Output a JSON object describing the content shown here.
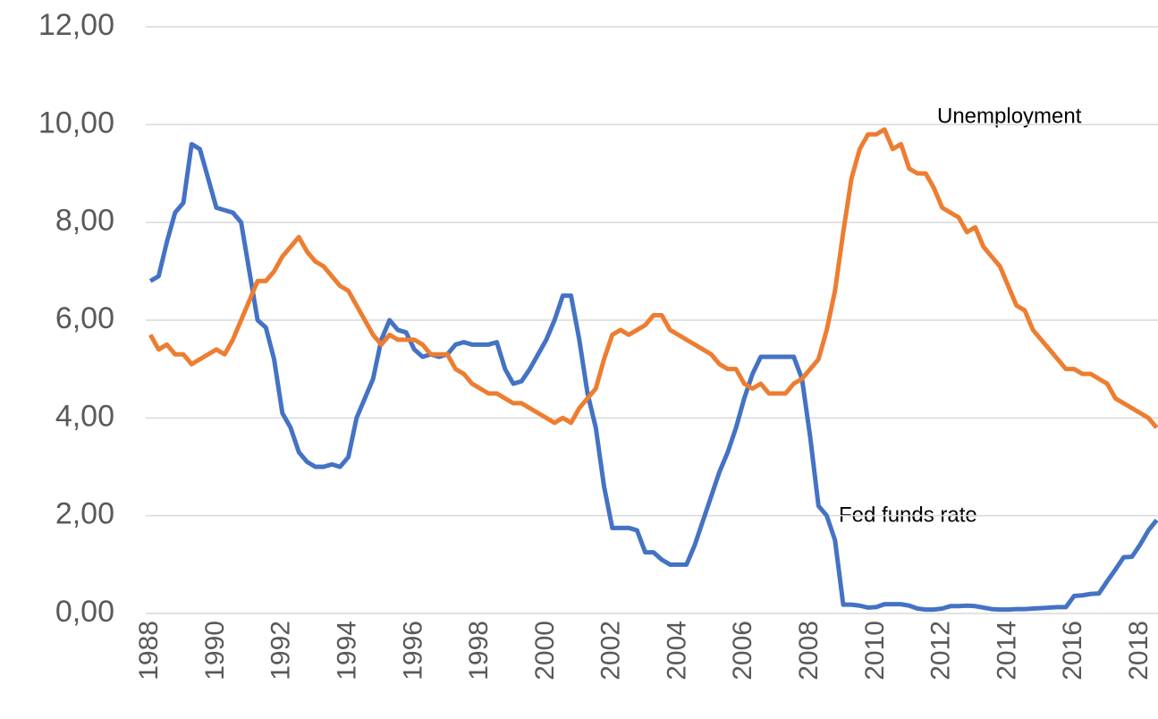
{
  "chart_data": {
    "type": "line",
    "annotations": [
      "Unemployment",
      "Fed funds rate"
    ],
    "x": [
      1988,
      1988.25,
      1988.5,
      1988.75,
      1989,
      1989.25,
      1989.5,
      1989.75,
      1990,
      1990.25,
      1990.5,
      1990.75,
      1991,
      1991.25,
      1991.5,
      1991.75,
      1992,
      1992.25,
      1992.5,
      1992.75,
      1993,
      1993.25,
      1993.5,
      1993.75,
      1994,
      1994.25,
      1994.5,
      1994.75,
      1995,
      1995.25,
      1995.5,
      1995.75,
      1996,
      1996.25,
      1996.5,
      1996.75,
      1997,
      1997.25,
      1997.5,
      1997.75,
      1998,
      1998.25,
      1998.5,
      1998.75,
      1999,
      1999.25,
      1999.5,
      1999.75,
      2000,
      2000.25,
      2000.5,
      2000.75,
      2001,
      2001.25,
      2001.5,
      2001.75,
      2002,
      2002.25,
      2002.5,
      2002.75,
      2003,
      2003.25,
      2003.5,
      2003.75,
      2004,
      2004.25,
      2004.5,
      2004.75,
      2005,
      2005.25,
      2005.5,
      2005.75,
      2006,
      2006.25,
      2006.5,
      2006.75,
      2007,
      2007.25,
      2007.5,
      2007.75,
      2008,
      2008.25,
      2008.5,
      2008.75,
      2009,
      2009.25,
      2009.5,
      2009.75,
      2010,
      2010.25,
      2010.5,
      2010.75,
      2011,
      2011.25,
      2011.5,
      2011.75,
      2012,
      2012.25,
      2012.5,
      2012.75,
      2013,
      2013.25,
      2013.5,
      2013.75,
      2014,
      2014.25,
      2014.5,
      2014.75,
      2015,
      2015.25,
      2015.5,
      2015.75,
      2016,
      2016.25,
      2016.5,
      2016.75,
      2017,
      2017.25,
      2017.5,
      2017.75,
      2018,
      2018.25,
      2018.5
    ],
    "series": [
      {
        "color": "#4472c4",
        "values": [
          6.8,
          6.9,
          7.6,
          8.2,
          8.4,
          9.6,
          9.5,
          8.9,
          8.3,
          8.25,
          8.2,
          8.0,
          7.0,
          6.0,
          5.85,
          5.2,
          4.1,
          3.8,
          3.3,
          3.1,
          3.0,
          3.0,
          3.05,
          3.0,
          3.2,
          4.0,
          4.4,
          4.8,
          5.6,
          6.0,
          5.8,
          5.75,
          5.4,
          5.25,
          5.3,
          5.25,
          5.3,
          5.5,
          5.55,
          5.5,
          5.5,
          5.5,
          5.55,
          5.0,
          4.7,
          4.75,
          5.0,
          5.3,
          5.6,
          6.0,
          6.5,
          6.5,
          5.6,
          4.5,
          3.8,
          2.6,
          1.75,
          1.75,
          1.75,
          1.7,
          1.25,
          1.25,
          1.1,
          1.0,
          1.0,
          1.0,
          1.4,
          1.9,
          2.4,
          2.9,
          3.3,
          3.8,
          4.4,
          4.9,
          5.25,
          5.25,
          5.25,
          5.25,
          5.25,
          4.8,
          3.6,
          2.2,
          2.0,
          1.5,
          0.18,
          0.18,
          0.16,
          0.12,
          0.13,
          0.19,
          0.19,
          0.19,
          0.16,
          0.1,
          0.08,
          0.08,
          0.1,
          0.15,
          0.15,
          0.16,
          0.15,
          0.12,
          0.09,
          0.08,
          0.08,
          0.09,
          0.09,
          0.1,
          0.11,
          0.12,
          0.13,
          0.13,
          0.36,
          0.37,
          0.4,
          0.41,
          0.66,
          0.9,
          1.15,
          1.16,
          1.41,
          1.7,
          1.91
        ]
      },
      {
        "color": "#ed7d31",
        "values": [
          5.7,
          5.4,
          5.5,
          5.3,
          5.3,
          5.1,
          5.2,
          5.3,
          5.4,
          5.3,
          5.6,
          6.0,
          6.4,
          6.8,
          6.8,
          7.0,
          7.3,
          7.5,
          7.7,
          7.4,
          7.2,
          7.1,
          6.9,
          6.7,
          6.6,
          6.3,
          6.0,
          5.7,
          5.5,
          5.7,
          5.6,
          5.6,
          5.6,
          5.5,
          5.3,
          5.3,
          5.3,
          5.0,
          4.9,
          4.7,
          4.6,
          4.5,
          4.5,
          4.4,
          4.3,
          4.3,
          4.2,
          4.1,
          4.0,
          3.9,
          4.0,
          3.9,
          4.2,
          4.4,
          4.6,
          5.2,
          5.7,
          5.8,
          5.7,
          5.8,
          5.9,
          6.1,
          6.1,
          5.8,
          5.7,
          5.6,
          5.5,
          5.4,
          5.3,
          5.1,
          5.0,
          5.0,
          4.7,
          4.6,
          4.7,
          4.5,
          4.5,
          4.5,
          4.7,
          4.8,
          5.0,
          5.2,
          5.8,
          6.6,
          7.8,
          8.9,
          9.5,
          9.8,
          9.8,
          9.9,
          9.5,
          9.6,
          9.1,
          9.0,
          9.0,
          8.7,
          8.3,
          8.2,
          8.1,
          7.8,
          7.9,
          7.5,
          7.3,
          7.1,
          6.7,
          6.3,
          6.2,
          5.8,
          5.6,
          5.4,
          5.2,
          5.0,
          5.0,
          4.9,
          4.9,
          4.8,
          4.7,
          4.4,
          4.3,
          4.2,
          4.1,
          4.0,
          3.8
        ]
      }
    ],
    "xlim": [
      1987.86,
      2018.54
    ],
    "xticks": [
      1988,
      1990,
      1992,
      1994,
      1996,
      1998,
      2000,
      2002,
      2004,
      2006,
      2008,
      2010,
      2012,
      2014,
      2016,
      2018
    ],
    "ylim": [
      0,
      12
    ],
    "yticks": [
      {
        "value": 0,
        "label": "0,00"
      },
      {
        "value": 2,
        "label": "2,00"
      },
      {
        "value": 4,
        "label": "4,00"
      },
      {
        "value": 6,
        "label": "6,00"
      },
      {
        "value": 8,
        "label": "8,00"
      },
      {
        "value": 10,
        "label": "10,00"
      },
      {
        "value": 12,
        "label": "12,00"
      }
    ],
    "grid": true
  }
}
